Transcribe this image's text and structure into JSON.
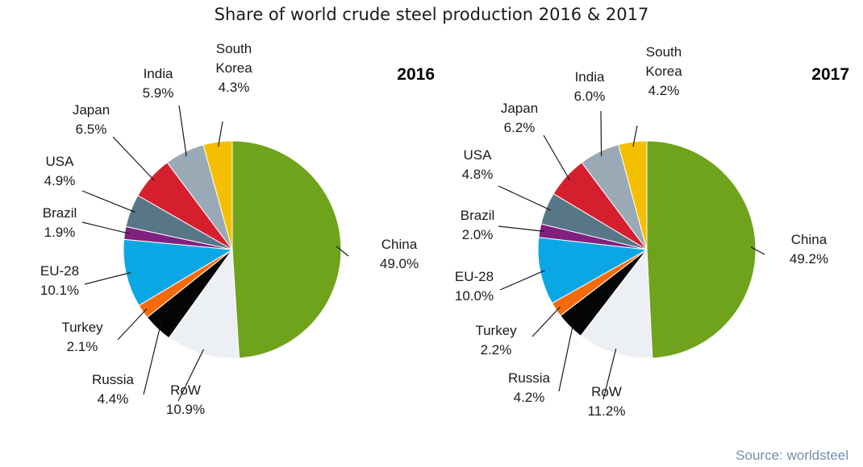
{
  "title": "Share of world crude steel production 2016 & 2017",
  "source": "Source: worldsteel",
  "colors": {
    "China": "#70a31c",
    "South Korea": "#f3bf00",
    "India": "#99aab6",
    "Japan": "#d61f2e",
    "USA": "#577686",
    "Brazil": "#80207f",
    "EU-28": "#0ba7e4",
    "Turkey": "#f56b0c",
    "Russia": "#050505",
    "RoW": "#ecf0f4",
    "leader": "#1a1a1a"
  },
  "chart_data": [
    {
      "type": "pie",
      "year": "2016",
      "slices": [
        {
          "name": "China",
          "value": 49.0,
          "name_lines": [
            "China"
          ],
          "pct": "49.0%"
        },
        {
          "name": "RoW",
          "value": 10.9,
          "name_lines": [
            "RoW"
          ],
          "pct": "10.9%"
        },
        {
          "name": "Russia",
          "value": 4.4,
          "name_lines": [
            "Russia"
          ],
          "pct": "4.4%"
        },
        {
          "name": "Turkey",
          "value": 2.1,
          "name_lines": [
            "Turkey"
          ],
          "pct": "2.1%"
        },
        {
          "name": "EU-28",
          "value": 10.1,
          "name_lines": [
            "EU-28"
          ],
          "pct": "10.1%"
        },
        {
          "name": "Brazil",
          "value": 1.9,
          "name_lines": [
            "Brazil"
          ],
          "pct": "1.9%"
        },
        {
          "name": "USA",
          "value": 4.9,
          "name_lines": [
            "USA"
          ],
          "pct": "4.9%"
        },
        {
          "name": "Japan",
          "value": 6.5,
          "name_lines": [
            "Japan"
          ],
          "pct": "6.5%"
        },
        {
          "name": "India",
          "value": 5.9,
          "name_lines": [
            "India"
          ],
          "pct": "5.9%"
        },
        {
          "name": "South Korea",
          "value": 4.3,
          "name_lines": [
            "South",
            "Korea"
          ],
          "pct": "4.3%"
        }
      ]
    },
    {
      "type": "pie",
      "year": "2017",
      "slices": [
        {
          "name": "China",
          "value": 49.2,
          "name_lines": [
            "China"
          ],
          "pct": "49.2%"
        },
        {
          "name": "RoW",
          "value": 11.2,
          "name_lines": [
            "RoW"
          ],
          "pct": "11.2%"
        },
        {
          "name": "Russia",
          "value": 4.2,
          "name_lines": [
            "Russia"
          ],
          "pct": "4.2%"
        },
        {
          "name": "Turkey",
          "value": 2.2,
          "name_lines": [
            "Turkey"
          ],
          "pct": "2.2%"
        },
        {
          "name": "EU-28",
          "value": 10.0,
          "name_lines": [
            "EU-28"
          ],
          "pct": "10.0%"
        },
        {
          "name": "Brazil",
          "value": 2.0,
          "name_lines": [
            "Brazil"
          ],
          "pct": "2.0%"
        },
        {
          "name": "USA",
          "value": 4.8,
          "name_lines": [
            "USA"
          ],
          "pct": "4.8%"
        },
        {
          "name": "Japan",
          "value": 6.2,
          "name_lines": [
            "Japan"
          ],
          "pct": "6.2%"
        },
        {
          "name": "India",
          "value": 6.0,
          "name_lines": [
            "India"
          ],
          "pct": "6.0%"
        },
        {
          "name": "South Korea",
          "value": 4.2,
          "name_lines": [
            "South",
            "Korea"
          ],
          "pct": "4.2%"
        }
      ]
    }
  ]
}
